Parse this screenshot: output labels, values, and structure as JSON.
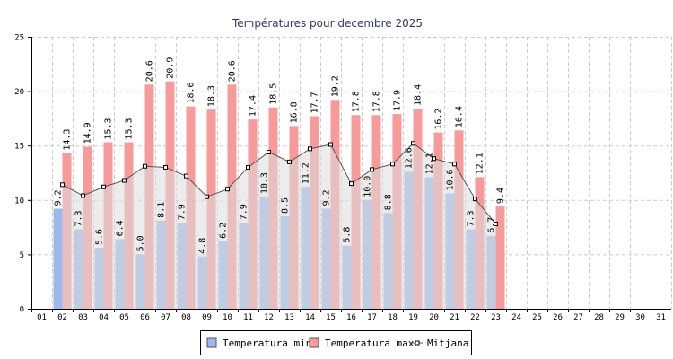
{
  "chart_data": {
    "type": "bar",
    "title": "Températures pour decembre 2025",
    "xlabel": "",
    "ylabel": "",
    "ylim": [
      0,
      25
    ],
    "yticks": [
      "0",
      "5",
      "10",
      "15",
      "20",
      "25"
    ],
    "categories": [
      "01",
      "02",
      "03",
      "04",
      "05",
      "06",
      "07",
      "08",
      "09",
      "10",
      "11",
      "12",
      "13",
      "14",
      "15",
      "16",
      "17",
      "18",
      "19",
      "20",
      "21",
      "22",
      "23",
      "24",
      "25",
      "26",
      "27",
      "28",
      "29",
      "30",
      "31"
    ],
    "grid": true,
    "legend_position": "bottom",
    "series": [
      {
        "name": "Temperatura min",
        "type": "bar",
        "color": "#9db8ea",
        "values": [
          null,
          9.2,
          7.3,
          5.6,
          6.4,
          5.0,
          8.1,
          7.9,
          4.8,
          6.2,
          7.9,
          10.3,
          8.5,
          11.2,
          9.2,
          5.8,
          10.0,
          8.8,
          12.6,
          12.1,
          10.6,
          7.3,
          6.7,
          null,
          null,
          null,
          null,
          null,
          null,
          null,
          null
        ],
        "labels": [
          null,
          "9.2",
          "7.3",
          "5.6",
          "6.4",
          "5.0",
          "8.1",
          "7.9",
          "4.8",
          "6.2",
          "7.9",
          "10.3",
          "8.5",
          "11.2",
          "9.2",
          "5.8",
          "10.0",
          "8.8",
          "12.6",
          "12.1",
          "10.6",
          "7.3",
          "6.7",
          null,
          null,
          null,
          null,
          null,
          null,
          null,
          null
        ]
      },
      {
        "name": "Temperatura max",
        "type": "bar",
        "color": "#f79a9a",
        "values": [
          null,
          14.3,
          14.9,
          15.3,
          15.3,
          20.6,
          20.9,
          18.6,
          18.3,
          20.6,
          17.4,
          18.5,
          16.8,
          17.7,
          19.2,
          17.8,
          17.8,
          17.9,
          18.4,
          16.2,
          16.4,
          12.1,
          9.4,
          null,
          null,
          null,
          null,
          null,
          null,
          null,
          null
        ],
        "labels": [
          null,
          "14.3",
          "14.9",
          "15.3",
          "15.3",
          "20.6",
          "20.9",
          "18.6",
          "18.3",
          "20.6",
          "17.4",
          "18.5",
          "16.8",
          "17.7",
          "19.2",
          "17.8",
          "17.8",
          "17.9",
          "18.4",
          "16.2",
          "16.4",
          "12.1",
          "9.4",
          null,
          null,
          null,
          null,
          null,
          null,
          null,
          null
        ]
      },
      {
        "name": "Mitjana",
        "type": "line",
        "color": "#555555",
        "values": [
          null,
          11.4,
          10.4,
          11.2,
          11.8,
          13.1,
          13.0,
          12.2,
          10.3,
          11.0,
          13.0,
          14.4,
          13.5,
          14.7,
          15.1,
          11.5,
          12.8,
          13.3,
          15.2,
          13.8,
          13.3,
          10.1,
          7.8,
          null,
          null,
          null,
          null,
          null,
          null,
          null,
          null
        ]
      }
    ]
  }
}
